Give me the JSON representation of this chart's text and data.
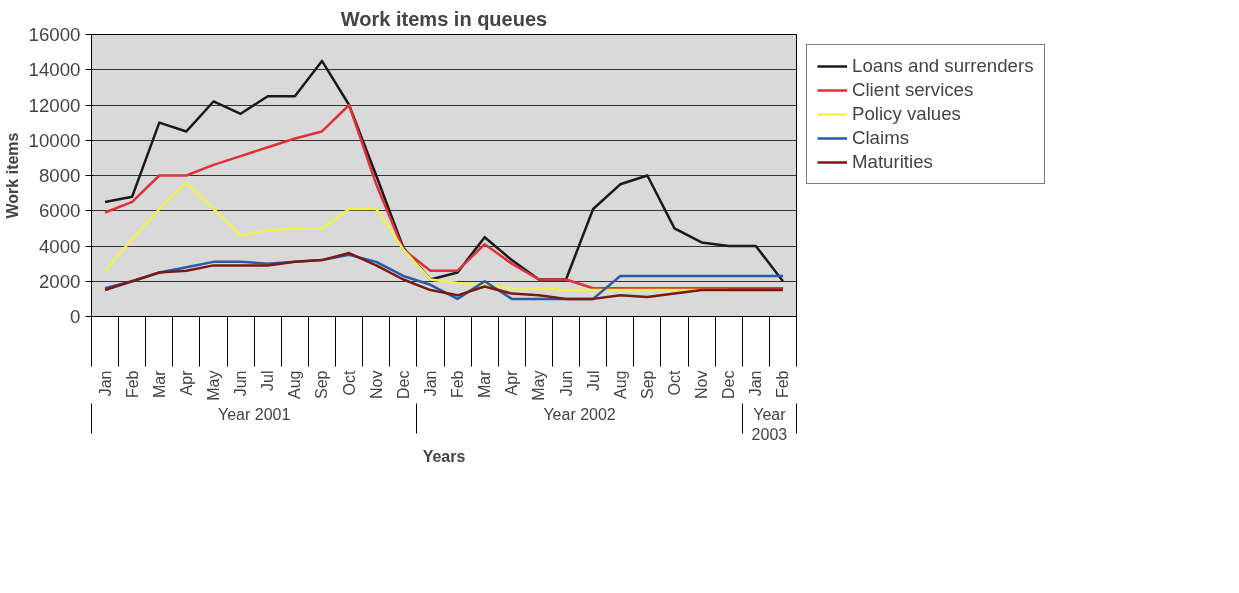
{
  "chart_data": {
    "type": "line",
    "title": "Work items in queues",
    "xlabel": "Years",
    "ylabel": "Work items",
    "categories": [
      "Jan",
      "Feb",
      "Mar",
      "Apr",
      "May",
      "Jun",
      "Jul",
      "Aug",
      "Sep",
      "Oct",
      "Nov",
      "Dec",
      "Jan",
      "Feb",
      "Mar",
      "Apr",
      "May",
      "Jun",
      "Jul",
      "Aug",
      "Sep",
      "Oct",
      "Nov",
      "Dec",
      "Jan",
      "Feb"
    ],
    "annotations": [
      "Year 2001",
      "Year 2002",
      "Year 2003"
    ],
    "series": [
      {
        "name": "Loans and surrenders",
        "color": "#1a1a1a",
        "values": [
          6500,
          6800,
          11000,
          10500,
          12200,
          11500,
          12500,
          12500,
          14500,
          12000,
          8000,
          3900,
          2100,
          2500,
          4500,
          3200,
          2100,
          2100,
          6100,
          7500,
          8000,
          5000,
          4200,
          4000,
          4000,
          2000
        ]
      },
      {
        "name": "Client services",
        "color": "#e0303a",
        "values": [
          5900,
          6500,
          8000,
          8000,
          8600,
          9100,
          9600,
          10100,
          10500,
          12000,
          7500,
          3800,
          2600,
          2600,
          4100,
          3000,
          2100,
          2100,
          1600,
          1600,
          1600,
          1600,
          1600,
          1600,
          1600,
          1600
        ]
      },
      {
        "name": "Policy values",
        "color": "#f0f050",
        "values": [
          2600,
          4400,
          6100,
          7600,
          6100,
          4600,
          4900,
          5000,
          5000,
          6100,
          6100,
          3800,
          2100,
          1900,
          1800,
          1600,
          1600,
          1500,
          1500,
          1500,
          1500,
          1500,
          1500,
          1500,
          null,
          null
        ]
      },
      {
        "name": "Claims",
        "color": "#2a5aa8",
        "values": [
          1600,
          2000,
          2500,
          2800,
          3100,
          3100,
          3000,
          3100,
          3200,
          3500,
          3100,
          2300,
          1800,
          1000,
          2000,
          1000,
          1000,
          1000,
          1000,
          2300,
          2300,
          2300,
          2300,
          2300,
          2300,
          2300
        ]
      },
      {
        "name": "Maturities",
        "color": "#7a1a10",
        "values": [
          1500,
          2000,
          2500,
          2600,
          2900,
          2900,
          2900,
          3100,
          3200,
          3600,
          2900,
          2100,
          1500,
          1200,
          1700,
          1300,
          1200,
          1000,
          1000,
          1200,
          1100,
          1300,
          1500,
          1500,
          1500,
          1500
        ]
      }
    ],
    "ylim": [
      0,
      16000
    ],
    "yticks": [
      0,
      2000,
      4000,
      6000,
      8000,
      10000,
      12000,
      14000,
      16000
    ],
    "grid": "y",
    "legend": "right",
    "marker": "none",
    "line_style": "solid"
  }
}
